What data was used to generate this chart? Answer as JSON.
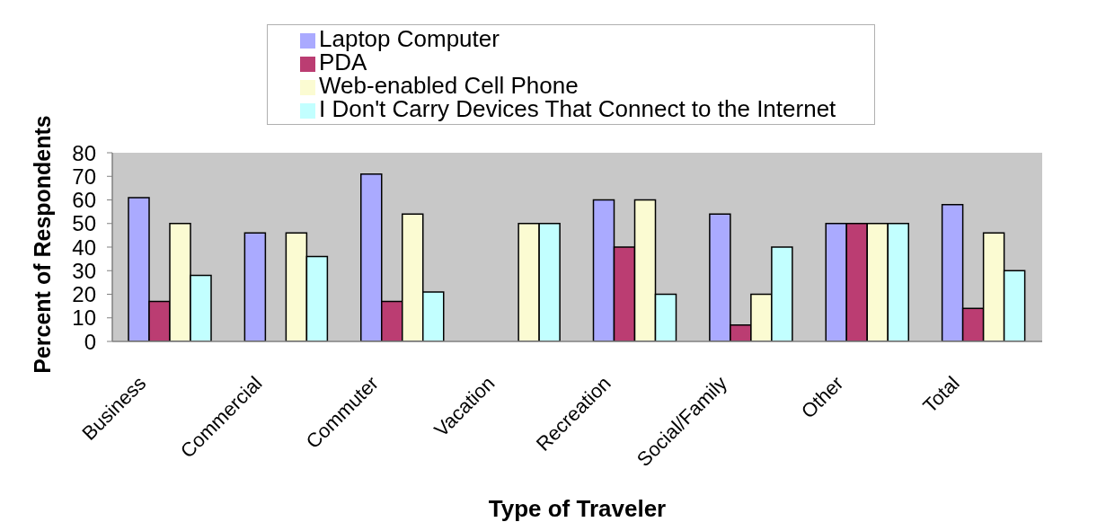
{
  "chart_data": {
    "type": "bar",
    "xlabel": "Type of Traveler",
    "ylabel": "Percent of Respondents",
    "categories": [
      "Business",
      "Commercial",
      "Commuter",
      "Vacation",
      "Recreation",
      "Social/Family",
      "Other",
      "Total"
    ],
    "series": [
      {
        "name": "Laptop Computer",
        "color": "#aaaaff",
        "values": [
          61,
          46,
          71,
          0,
          60,
          54,
          50,
          58
        ]
      },
      {
        "name": "PDA",
        "color": "#bb3d72",
        "values": [
          17,
          0,
          17,
          0,
          40,
          7,
          50,
          14
        ]
      },
      {
        "name": "Web-enabled Cell Phone",
        "color": "#fbfbd2",
        "values": [
          50,
          46,
          54,
          50,
          60,
          20,
          50,
          46
        ]
      },
      {
        "name": "I Don't Carry Devices That Connect to the Internet",
        "color": "#c2ffff",
        "values": [
          28,
          36,
          21,
          50,
          20,
          40,
          50,
          30
        ]
      }
    ],
    "ylim": [
      0,
      80
    ],
    "yticks": [
      0,
      10,
      20,
      30,
      40,
      50,
      60,
      70,
      80
    ],
    "legend": "top"
  }
}
